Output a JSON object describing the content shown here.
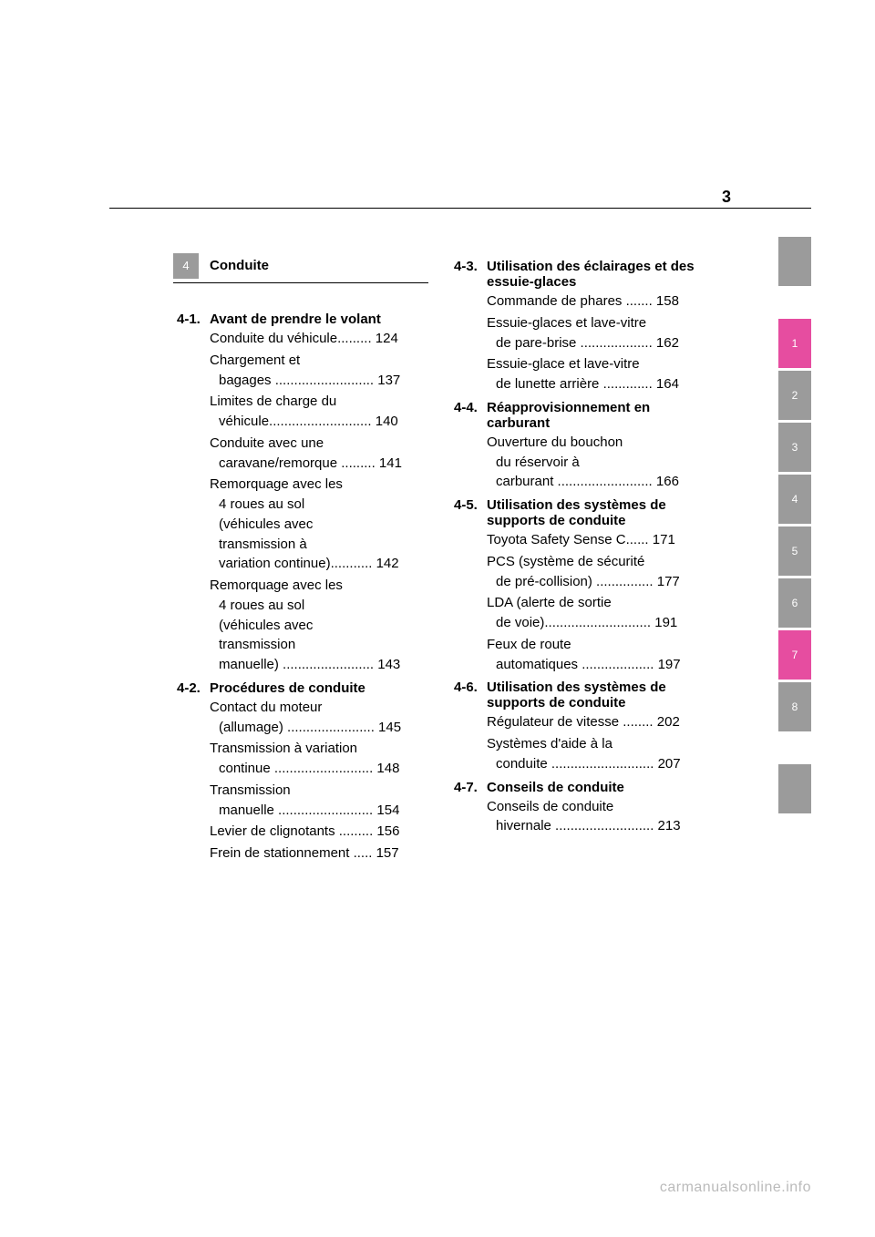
{
  "page_number_top": "3",
  "section_tab_number": "4",
  "section_title": "Conduite",
  "left_column": [
    {
      "num": "4-1.",
      "title": "Avant de prendre le volant",
      "entries": [
        {
          "lines": [
            "Conduite du véhicule......... 124"
          ]
        },
        {
          "lines": [
            "Chargement et",
            "bagages .......................... 137"
          ]
        },
        {
          "lines": [
            "Limites de charge du",
            "véhicule........................... 140"
          ]
        },
        {
          "lines": [
            "Conduite avec une",
            "caravane/remorque ......... 141"
          ]
        },
        {
          "lines": [
            "Remorquage avec les",
            "4 roues au sol",
            "(véhicules avec",
            "transmission à",
            "variation continue)........... 142"
          ]
        },
        {
          "lines": [
            "Remorquage avec les",
            "4 roues au sol",
            "(véhicules avec",
            "transmission",
            "manuelle) ........................ 143"
          ]
        }
      ]
    },
    {
      "num": "4-2.",
      "title": "Procédures de conduite",
      "entries": [
        {
          "lines": [
            "Contact du moteur",
            "(allumage) ....................... 145"
          ]
        },
        {
          "lines": [
            "Transmission à variation",
            "continue .......................... 148"
          ]
        },
        {
          "lines": [
            "Transmission",
            "manuelle ......................... 154"
          ]
        },
        {
          "lines": [
            "Levier de clignotants ......... 156"
          ]
        },
        {
          "lines": [
            "Frein de stationnement ..... 157"
          ]
        }
      ]
    }
  ],
  "right_column": [
    {
      "num": "4-3.",
      "title": "Utilisation des éclairages et des essuie-glaces",
      "entries": [
        {
          "lines": [
            "Commande de phares ....... 158"
          ]
        },
        {
          "lines": [
            "Essuie-glaces et lave-vitre",
            "de pare-brise ................... 162"
          ]
        },
        {
          "lines": [
            "Essuie-glace et lave-vitre",
            "de lunette arrière ............. 164"
          ]
        }
      ]
    },
    {
      "num": "4-4.",
      "title": "Réapprovisionnement en carburant",
      "entries": [
        {
          "lines": [
            "Ouverture du bouchon",
            "du réservoir à",
            "carburant ......................... 166"
          ]
        }
      ]
    },
    {
      "num": "4-5.",
      "title": "Utilisation des systèmes de supports de conduite",
      "entries": [
        {
          "lines": [
            "Toyota Safety Sense C...... 171"
          ]
        },
        {
          "lines": [
            "PCS (système de sécurité",
            "de pré-collision) ............... 177"
          ]
        },
        {
          "lines": [
            "LDA (alerte de sortie",
            "de voie)............................ 191"
          ]
        },
        {
          "lines": [
            "Feux de route",
            "automatiques ................... 197"
          ]
        }
      ]
    },
    {
      "num": "4-6.",
      "title": "Utilisation des systèmes de supports de conduite",
      "entries": [
        {
          "lines": [
            "Régulateur de vitesse ........ 202"
          ]
        },
        {
          "lines": [
            "Systèmes d'aide à la",
            "conduite ........................... 207"
          ]
        }
      ]
    },
    {
      "num": "4-7.",
      "title": "Conseils de conduite",
      "entries": [
        {
          "lines": [
            "Conseils de conduite",
            "hivernale .......................... 213"
          ]
        }
      ]
    }
  ],
  "sidebar": {
    "top_blank": true,
    "tabs": [
      {
        "label": "1",
        "color": "pink"
      },
      {
        "label": "2",
        "color": "gray"
      },
      {
        "label": "3",
        "color": "gray"
      },
      {
        "label": "4",
        "color": "gray"
      },
      {
        "label": "5",
        "color": "gray"
      },
      {
        "label": "6",
        "color": "gray"
      },
      {
        "label": "7",
        "color": "pink"
      },
      {
        "label": "8",
        "color": "gray"
      }
    ],
    "bottom_blank": true
  },
  "footer": "carmanualsonline.info"
}
